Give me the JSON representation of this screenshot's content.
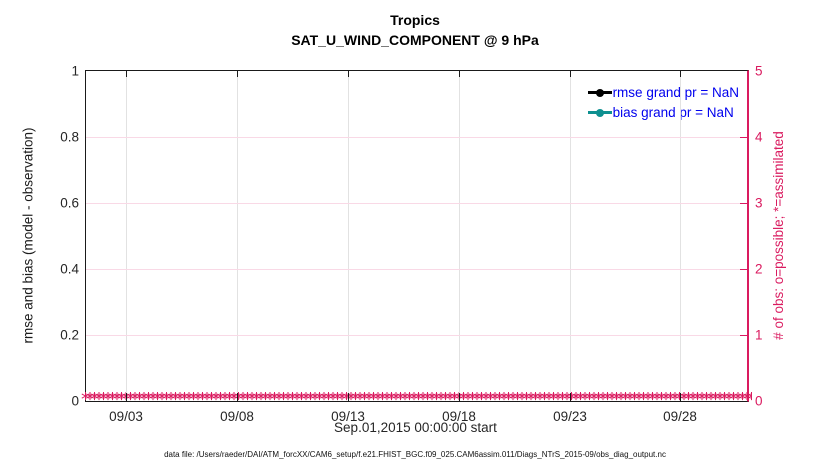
{
  "figure": {
    "background": "#ffffff"
  },
  "chart_data": {
    "type": "line",
    "title": "Tropics",
    "subtitle": "SAT_U_WIND_COMPONENT @ 9 hPa",
    "xlabel": "Sep.01,2015 00:00:00 start",
    "caption": "data file: /Users/raeder/DAI/ATM_forcXX/CAM6_setup/f.e21.FHIST_BGC.f09_025.CAM6assim.011/Diags_NTrS_2015-09/obs_diag_output.nc",
    "x_axis": {
      "tick_labels": [
        "09/03",
        "09/08",
        "09/13",
        "09/18",
        "09/23",
        "09/28"
      ],
      "tick_days": [
        3,
        8,
        13,
        18,
        23,
        28
      ],
      "range_days": [
        1.2,
        31.0
      ],
      "color": "#262626"
    },
    "left_axis": {
      "label": "rmse and bias (model - observation)",
      "tick_labels": [
        "0",
        "0.2",
        "0.4",
        "0.6",
        "0.8",
        "1"
      ],
      "tick_values": [
        0,
        0.2,
        0.4,
        0.6,
        0.8,
        1
      ],
      "range": [
        0,
        1
      ],
      "color": "#1a1a1a"
    },
    "right_axis": {
      "label": "# of obs: o=possible; *=assimilated",
      "tick_labels": [
        "0",
        "1",
        "2",
        "3",
        "4",
        "5"
      ],
      "tick_values": [
        0,
        1,
        2,
        3,
        4,
        5
      ],
      "range": [
        0,
        5
      ],
      "color": "#da1a5f"
    },
    "grid": {
      "enabled": true,
      "vertical_color": "#e2e2e2",
      "horizontal_color": "#f9d9e6"
    },
    "legend": {
      "position": "top-right-inside",
      "text_color": "#0000ee",
      "entries": [
        {
          "label": "rmse grand pr = NaN",
          "color": "#000000",
          "marker": "filled-circle"
        },
        {
          "label": "bias grand pr = NaN",
          "color": "#0e9090",
          "marker": "filled-circle"
        }
      ]
    },
    "series": [
      {
        "name": "rmse grand pr",
        "color": "#000000",
        "values": "NaN",
        "note": "no curve drawn (all NaN)"
      },
      {
        "name": "bias grand pr",
        "color": "#0e9090",
        "values": "NaN",
        "note": "no curve drawn (all NaN)"
      },
      {
        "name": "obs possible/assimilated count",
        "axis": "right",
        "color": "#da1a5f",
        "marker_glyph": "*",
        "constant_value": 0,
        "note": "dense overlapping markers at 0 spanning the full date range"
      }
    ]
  }
}
